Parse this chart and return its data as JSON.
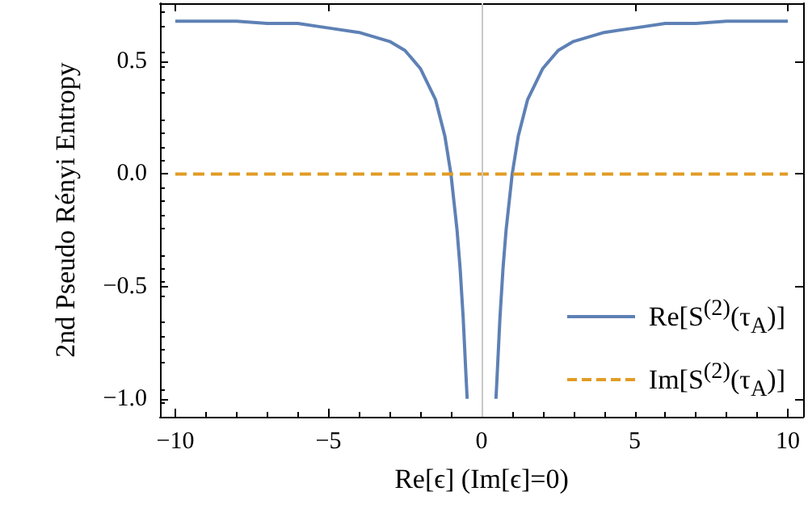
{
  "chart_data": {
    "type": "line",
    "xlabel": "Re[ϵ] (Im[ϵ]=0)",
    "ylabel": "2nd Pseudo Rényi Entropy",
    "xlim": [
      -10.5,
      10.5
    ],
    "xticks": [
      {
        "value": -10,
        "label": "−10"
      },
      {
        "value": -5,
        "label": "−5"
      },
      0,
      5,
      10
    ],
    "ylim": [
      -1.08,
      0.76
    ],
    "yticks": [
      {
        "value": -1,
        "label": "−1.0"
      },
      {
        "value": -0.5,
        "label": "−0.5"
      },
      {
        "value": 0,
        "label": "0.0"
      },
      {
        "value": 0.5,
        "label": "0.5"
      }
    ],
    "legend": "bottom right",
    "grid": false,
    "ref_lines": [
      {
        "axis": "x",
        "value": 0,
        "color": "#c8c8c8"
      }
    ],
    "series": [
      {
        "name": "Re[S$^{(2)}$(τ$_{A}$)]",
        "color": "#5e81b5",
        "line_style": "solid",
        "x": [
          -10,
          -8,
          -7,
          -6,
          -5,
          -4,
          -3,
          -2.5,
          -2,
          -1.5,
          -1.2,
          -1,
          -0.8,
          -0.7,
          -0.6,
          -0.5,
          -0.47,
          0,
          0.47,
          0.5,
          0.6,
          0.7,
          0.8,
          1,
          1.2,
          1.5,
          2,
          2.5,
          3,
          4,
          5,
          6,
          7,
          8,
          10
        ],
        "values": [
          0.68,
          0.68,
          0.67,
          0.67,
          0.65,
          0.63,
          0.59,
          0.55,
          0.47,
          0.33,
          0.17,
          0,
          -0.25,
          -0.42,
          -0.64,
          -0.92,
          -1.0,
          null,
          -1.0,
          -0.92,
          -0.64,
          -0.42,
          -0.25,
          0,
          0.17,
          0.33,
          0.47,
          0.55,
          0.59,
          0.63,
          0.65,
          0.67,
          0.67,
          0.68,
          0.68
        ]
      },
      {
        "name": "Im[S$^{(2)}$(τ$_{A}$)]",
        "color": "#e19c24",
        "line_style": "dashed",
        "x": [
          -10,
          10
        ],
        "values": [
          0,
          0
        ]
      }
    ]
  }
}
